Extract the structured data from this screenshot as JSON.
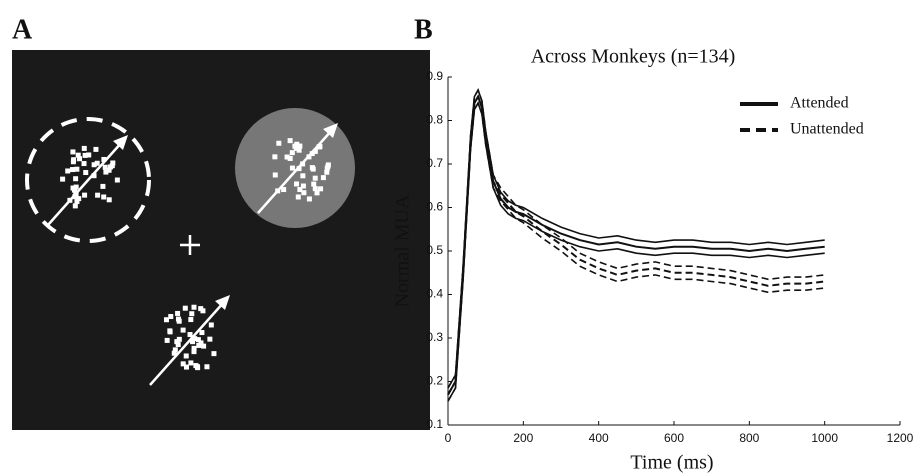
{
  "panel_labels": [
    "A",
    "B"
  ],
  "chart_data": {
    "type": "line",
    "title": "Across Monkeys (n=134)",
    "xlabel": "Time (ms)",
    "ylabel": "Normal MUA",
    "x": [
      0,
      20,
      40,
      60,
      70,
      80,
      90,
      100,
      120,
      140,
      160,
      180,
      200,
      250,
      300,
      350,
      400,
      450,
      500,
      550,
      600,
      650,
      700,
      750,
      800,
      850,
      900,
      950,
      1000
    ],
    "series": [
      {
        "name": "Attended",
        "color": "#111111",
        "dashed": false,
        "error": 0.015,
        "values": [
          0.17,
          0.2,
          0.45,
          0.75,
          0.84,
          0.855,
          0.83,
          0.76,
          0.66,
          0.62,
          0.6,
          0.59,
          0.585,
          0.56,
          0.54,
          0.525,
          0.515,
          0.52,
          0.51,
          0.505,
          0.51,
          0.51,
          0.505,
          0.505,
          0.5,
          0.505,
          0.5,
          0.505,
          0.51
        ]
      },
      {
        "name": "Unattended",
        "color": "#111111",
        "dashed": true,
        "error": 0.015,
        "values": [
          0.17,
          0.2,
          0.45,
          0.75,
          0.84,
          0.855,
          0.83,
          0.76,
          0.66,
          0.63,
          0.61,
          0.59,
          0.58,
          0.545,
          0.515,
          0.48,
          0.46,
          0.445,
          0.455,
          0.46,
          0.45,
          0.45,
          0.445,
          0.44,
          0.43,
          0.42,
          0.425,
          0.425,
          0.43
        ]
      }
    ],
    "xlim": [
      0,
      1200
    ],
    "xticks": [
      0,
      200,
      400,
      600,
      800,
      1000,
      1200
    ],
    "ylim": [
      0.1,
      0.9
    ],
    "yticks": [
      0.1,
      0.2,
      0.3,
      0.4,
      0.5,
      0.6,
      0.7,
      0.8,
      0.9
    ],
    "legend": "top-right",
    "grid": false
  }
}
